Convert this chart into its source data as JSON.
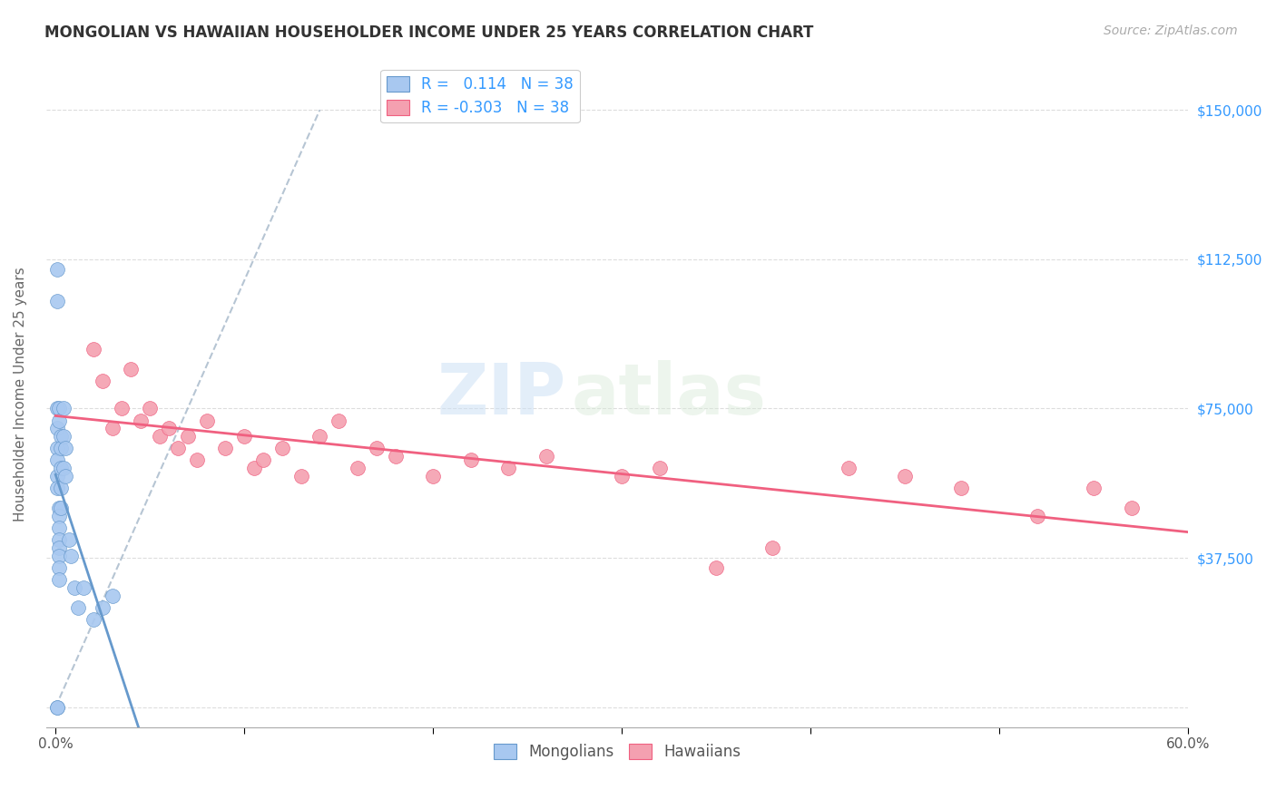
{
  "title": "MONGOLIAN VS HAWAIIAN HOUSEHOLDER INCOME UNDER 25 YEARS CORRELATION CHART",
  "source": "Source: ZipAtlas.com",
  "ylabel": "Householder Income Under 25 years",
  "watermark_zip": "ZIP",
  "watermark_atlas": "atlas",
  "xlim": [
    -0.005,
    0.6
  ],
  "ylim": [
    -5000,
    162000
  ],
  "yticks": [
    0,
    37500,
    75000,
    112500,
    150000
  ],
  "ytick_labels": [
    "",
    "$37,500",
    "$75,000",
    "$112,500",
    "$150,000"
  ],
  "r_mongolian": "0.114",
  "r_hawaiian": "-0.303",
  "n_mongolian": 38,
  "n_hawaiian": 38,
  "mongolian_color": "#a8c8f0",
  "hawaiian_color": "#f4a0b0",
  "trendline_mongolian_color": "#6699cc",
  "trendline_hawaiian_color": "#f06080",
  "diagonal_color": "#aabbcc",
  "background_color": "#ffffff",
  "grid_color": "#dddddd",
  "title_color": "#333333",
  "axis_label_color": "#666666",
  "right_label_color": "#3399ff",
  "legend_blue_text": "#3399ff",
  "mongolian_x": [
    0.001,
    0.001,
    0.001,
    0.001,
    0.001,
    0.001,
    0.001,
    0.001,
    0.001,
    0.001,
    0.002,
    0.002,
    0.002,
    0.002,
    0.002,
    0.002,
    0.002,
    0.002,
    0.002,
    0.002,
    0.003,
    0.003,
    0.003,
    0.003,
    0.003,
    0.004,
    0.004,
    0.004,
    0.005,
    0.005,
    0.007,
    0.008,
    0.01,
    0.012,
    0.015,
    0.02,
    0.025,
    0.03
  ],
  "mongolian_y": [
    0,
    0,
    110000,
    102000,
    75000,
    70000,
    65000,
    62000,
    58000,
    55000,
    50000,
    48000,
    45000,
    42000,
    40000,
    38000,
    35000,
    32000,
    75000,
    72000,
    68000,
    65000,
    60000,
    55000,
    50000,
    75000,
    68000,
    60000,
    65000,
    58000,
    42000,
    38000,
    30000,
    25000,
    30000,
    22000,
    25000,
    28000
  ],
  "hawaiian_x": [
    0.02,
    0.025,
    0.03,
    0.035,
    0.04,
    0.045,
    0.05,
    0.055,
    0.06,
    0.065,
    0.07,
    0.075,
    0.08,
    0.09,
    0.1,
    0.105,
    0.11,
    0.12,
    0.13,
    0.14,
    0.15,
    0.16,
    0.17,
    0.18,
    0.2,
    0.22,
    0.24,
    0.26,
    0.3,
    0.32,
    0.35,
    0.38,
    0.42,
    0.45,
    0.48,
    0.52,
    0.55,
    0.57
  ],
  "hawaiian_y": [
    90000,
    82000,
    70000,
    75000,
    85000,
    72000,
    75000,
    68000,
    70000,
    65000,
    68000,
    62000,
    72000,
    65000,
    68000,
    60000,
    62000,
    65000,
    58000,
    68000,
    72000,
    60000,
    65000,
    63000,
    58000,
    62000,
    60000,
    63000,
    58000,
    60000,
    35000,
    40000,
    60000,
    58000,
    55000,
    48000,
    55000,
    50000
  ]
}
